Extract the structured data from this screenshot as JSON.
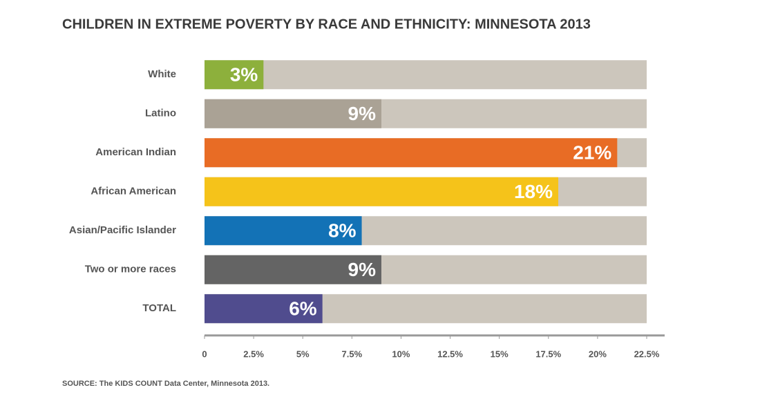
{
  "chart_data": {
    "type": "hbar",
    "title": "CHILDREN IN EXTREME POVERTY BY RACE AND ETHNICITY: MINNESOTA 2013",
    "categories": [
      "White",
      "Latino",
      "American Indian",
      "African American",
      "Asian/Pacific Islander",
      "Two or more races",
      "TOTAL"
    ],
    "values": [
      3,
      9,
      21,
      18,
      8,
      9,
      6
    ],
    "value_labels": [
      "3%",
      "9%",
      "21%",
      "18%",
      "8%",
      "9%",
      "6%"
    ],
    "colors": [
      "#8db03c",
      "#aaa295",
      "#e86c25",
      "#f5c31a",
      "#1372b6",
      "#646464",
      "#504c8e"
    ],
    "track_color": "#ccc6bc",
    "xlim": [
      0,
      22.5
    ],
    "xticks": [
      0,
      {
        "value": 2.5,
        "label": "2.5%"
      },
      {
        "value": 5,
        "label": "5%"
      },
      {
        "value": 7.5,
        "label": "7.5%"
      },
      {
        "value": 10,
        "label": "10%"
      },
      {
        "value": 12.5,
        "label": "12.5%"
      },
      {
        "value": 15,
        "label": "15%"
      },
      {
        "value": 17.5,
        "label": "17.5%"
      },
      {
        "value": 20,
        "label": "20%"
      },
      {
        "value": 22.5,
        "label": "22.5%"
      }
    ],
    "source": "SOURCE: The KIDS COUNT Data Center, Minnesota 2013."
  }
}
